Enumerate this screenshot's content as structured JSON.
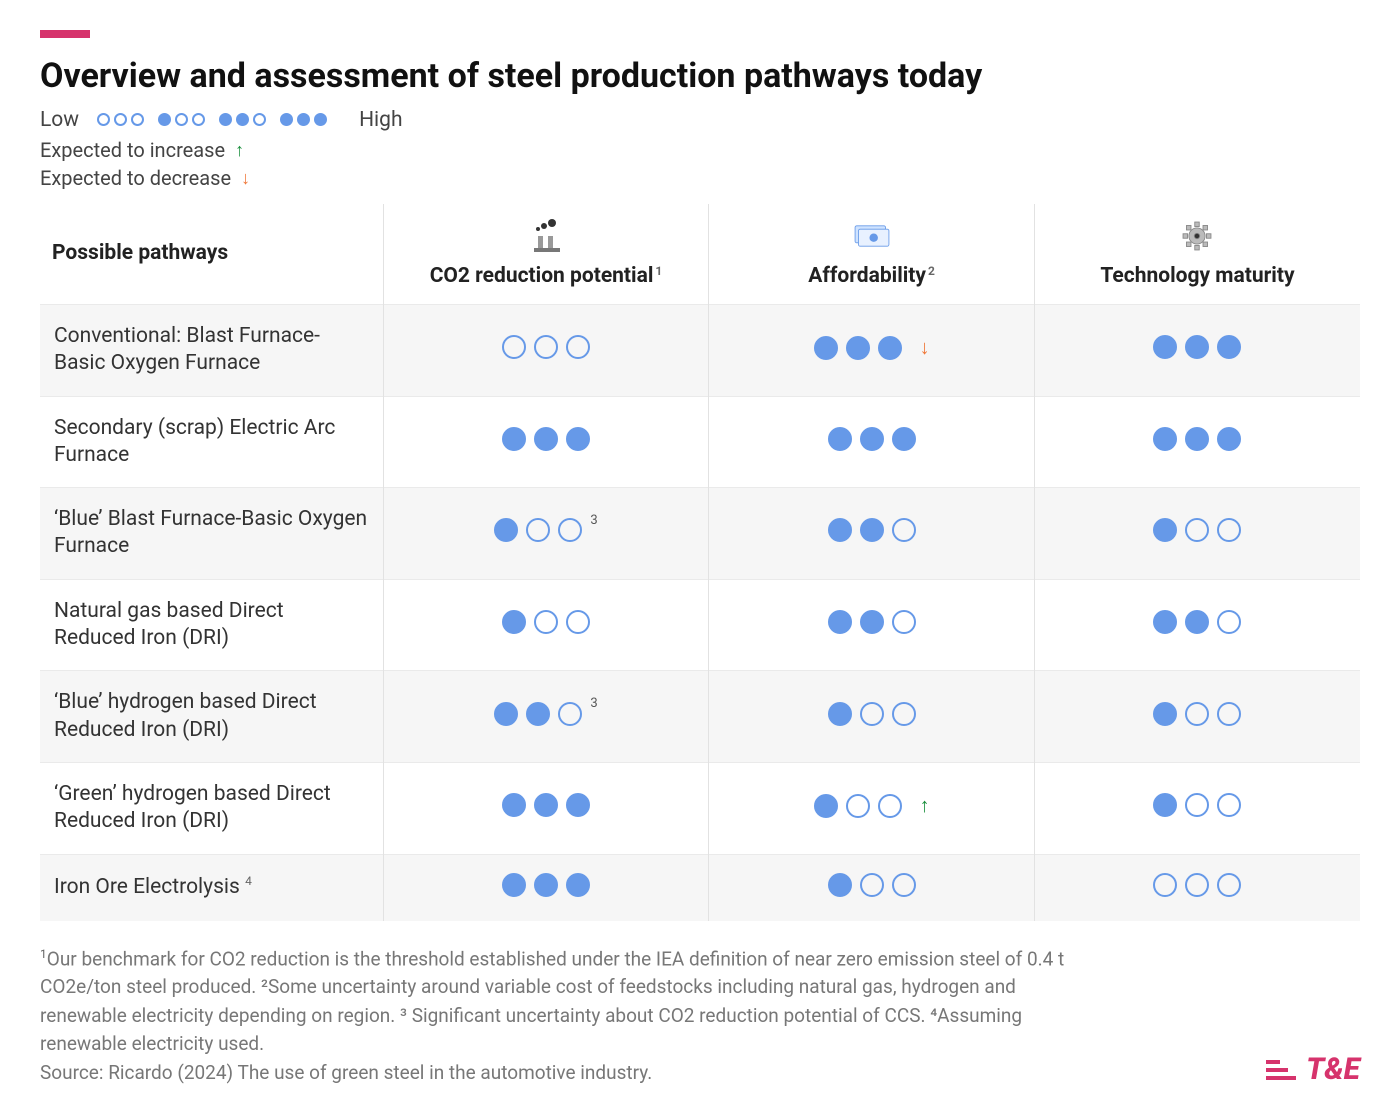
{
  "colors": {
    "accent": "#d6336c",
    "dot": "#6699e8",
    "arrow_up": "#1a8f3c",
    "arrow_down": "#f07838",
    "row_stripe": "#f6f6f6",
    "border": "#e2e2e2",
    "text": "#222222",
    "muted": "#777777"
  },
  "title": "Overview and assessment of steel production pathways today",
  "legend": {
    "low_label": "Low",
    "high_label": "High",
    "increase_label": "Expected to increase",
    "decrease_label": "Expected to decrease",
    "patterns": [
      {
        "filled": 0
      },
      {
        "filled": 1
      },
      {
        "filled": 2
      },
      {
        "filled": 3
      }
    ]
  },
  "columns": [
    {
      "key": "pathway",
      "label": "Possible pathways",
      "sup": "",
      "icon": ""
    },
    {
      "key": "co2",
      "label": "CO2 reduction potential",
      "sup": "1",
      "icon": "factory"
    },
    {
      "key": "afford",
      "label": "Affordability",
      "sup": "2",
      "icon": "money"
    },
    {
      "key": "tech",
      "label": "Technology maturity",
      "sup": "",
      "icon": "gear"
    }
  ],
  "rows": [
    {
      "pathway": "Conventional: Blast Furnace-Basic Oxygen Furnace",
      "co2": {
        "filled": 0,
        "sup": "",
        "trend": ""
      },
      "afford": {
        "filled": 3,
        "sup": "",
        "trend": "down"
      },
      "tech": {
        "filled": 3,
        "sup": "",
        "trend": ""
      }
    },
    {
      "pathway": "Secondary (scrap) Electric Arc Furnace",
      "co2": {
        "filled": 3,
        "sup": "",
        "trend": ""
      },
      "afford": {
        "filled": 3,
        "sup": "",
        "trend": ""
      },
      "tech": {
        "filled": 3,
        "sup": "",
        "trend": ""
      }
    },
    {
      "pathway": "‘Blue’ Blast Furnace-Basic Oxygen Furnace",
      "co2": {
        "filled": 1,
        "sup": "3",
        "trend": ""
      },
      "afford": {
        "filled": 2,
        "sup": "",
        "trend": ""
      },
      "tech": {
        "filled": 1,
        "sup": "",
        "trend": ""
      }
    },
    {
      "pathway": "Natural gas based Direct Reduced Iron (DRI)",
      "co2": {
        "filled": 1,
        "sup": "",
        "trend": ""
      },
      "afford": {
        "filled": 2,
        "sup": "",
        "trend": ""
      },
      "tech": {
        "filled": 2,
        "sup": "",
        "trend": ""
      }
    },
    {
      "pathway": "‘Blue’ hydrogen based Direct Reduced Iron (DRI)",
      "co2": {
        "filled": 2,
        "sup": "3",
        "trend": ""
      },
      "afford": {
        "filled": 1,
        "sup": "",
        "trend": ""
      },
      "tech": {
        "filled": 1,
        "sup": "",
        "trend": ""
      }
    },
    {
      "pathway": "‘Green’ hydrogen based Direct Reduced Iron (DRI)",
      "co2": {
        "filled": 3,
        "sup": "",
        "trend": ""
      },
      "afford": {
        "filled": 1,
        "sup": "",
        "trend": "up"
      },
      "tech": {
        "filled": 1,
        "sup": "",
        "trend": ""
      }
    },
    {
      "pathway": "Iron Ore Electrolysis",
      "pathway_sup": "4",
      "co2": {
        "filled": 3,
        "sup": "",
        "trend": ""
      },
      "afford": {
        "filled": 1,
        "sup": "",
        "trend": ""
      },
      "tech": {
        "filled": 0,
        "sup": "",
        "trend": ""
      }
    }
  ],
  "dots_per_rating": 3,
  "footnotes": {
    "text": "Our benchmark for CO2 reduction is the threshold established under the IEA definition of near zero emission steel of 0.4 t CO2e/ton steel produced. ²Some uncertainty around variable cost of feedstocks including natural gas, hydrogen and renewable electricity depending on region. ³ Significant uncertainty about CO2 reduction potential of CCS. ⁴Assuming renewable electricity used.",
    "leading_sup": "1",
    "source": "Source: Ricardo (2024) The use of green steel in the automotive industry."
  },
  "brand": "T&E",
  "glyphs": {
    "arrow_up": "↑",
    "arrow_down": "↓"
  }
}
